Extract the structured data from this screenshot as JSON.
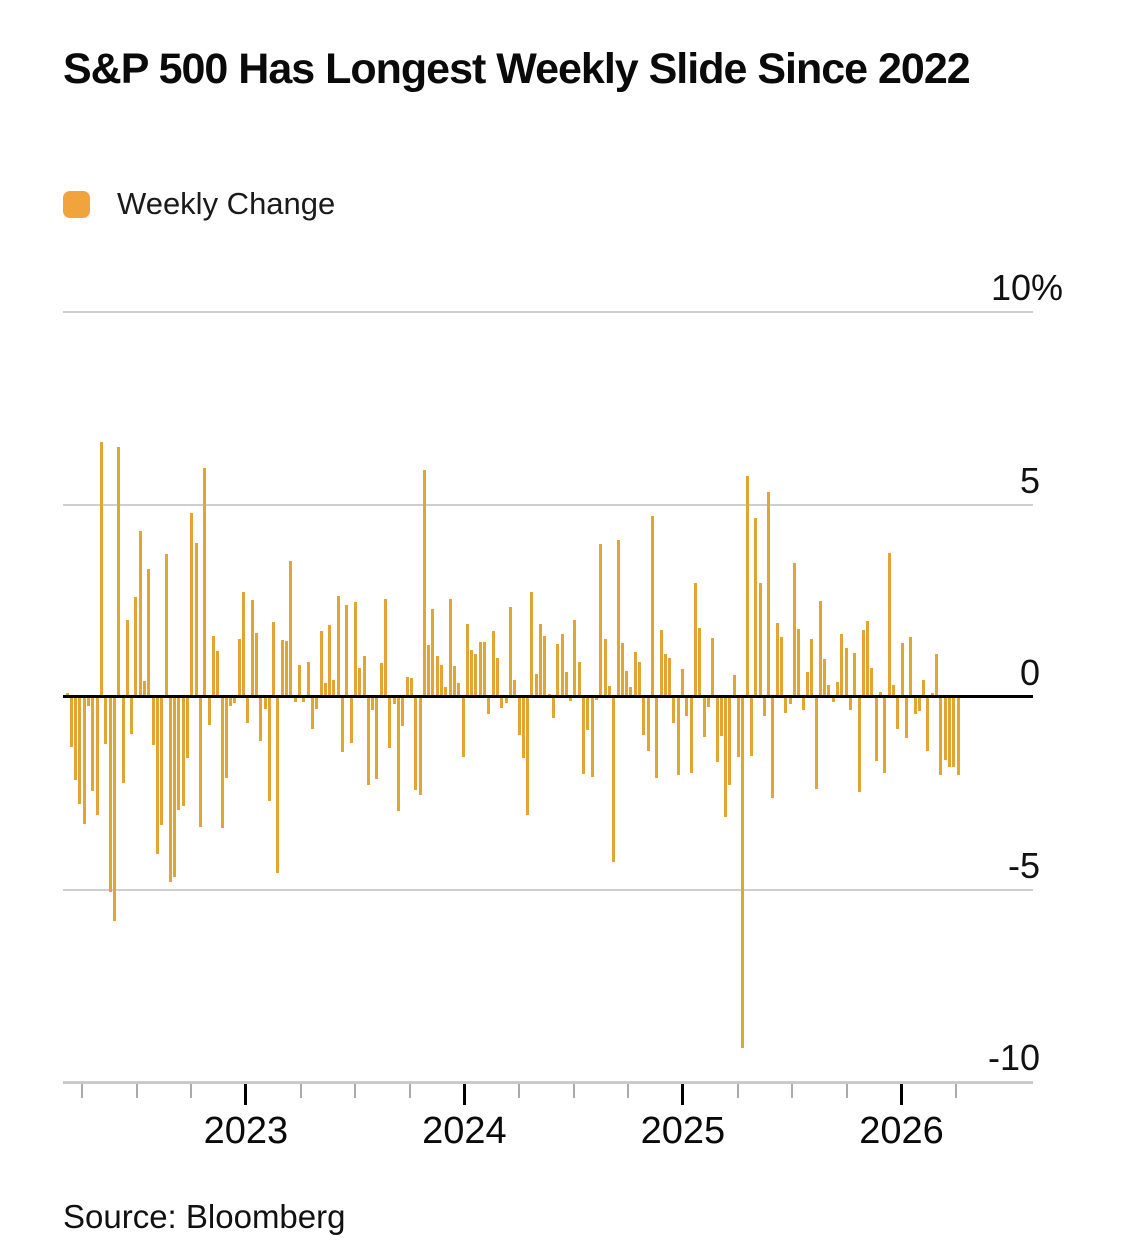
{
  "title": "S&P 500 Has Longest Weekly Slide Since 2022",
  "legend": {
    "label": "Weekly Change",
    "swatch_color": "#F2A33C"
  },
  "source": "Source: Bloomberg",
  "colors": {
    "bar": "#E2A433",
    "grid": "#CFCFCF",
    "zero_line": "#000000",
    "axis_line": "#C9C9C9",
    "text": "#0A0A0A"
  },
  "y_axis": {
    "unit": "%",
    "ticks": [
      {
        "value": 10,
        "label": "10%"
      },
      {
        "value": 5,
        "label": "5"
      },
      {
        "value": 0,
        "label": "0"
      },
      {
        "value": -5,
        "label": "-5"
      },
      {
        "value": -10,
        "label": "-10"
      }
    ]
  },
  "x_axis": {
    "year_labels": [
      "2023",
      "2024",
      "2025",
      "2026"
    ]
  },
  "chart_data": {
    "type": "bar",
    "title": "S&P 500 Has Longest Weekly Slide Since 2022",
    "series_name": "Weekly Change",
    "unit": "percent",
    "frequency": "weekly",
    "start_week": "2022-04-01",
    "end_week": "2026-03-20",
    "xlabel": "",
    "ylabel": "Weekly change (%)",
    "ylim": [
      -10.5,
      10
    ],
    "grid": true,
    "legend_position": "top-left",
    "values": [
      0.06,
      -1.27,
      -2.13,
      -2.75,
      -3.27,
      -0.21,
      -2.41,
      -3.05,
      6.58,
      -1.2,
      -5.05,
      -5.79,
      6.45,
      -2.21,
      1.94,
      -0.93,
      2.55,
      4.26,
      0.36,
      3.26,
      -1.21,
      -4.04,
      -3.29,
      3.65,
      -4.77,
      -4.65,
      -2.91,
      -2.8,
      -1.55,
      4.74,
      3.95,
      -3.35,
      5.9,
      -0.69,
      1.53,
      1.13,
      -3.37,
      -2.08,
      -0.2,
      -0.14,
      1.45,
      2.67,
      -0.66,
      2.47,
      1.62,
      -1.11,
      -0.28,
      -2.67,
      1.9,
      -4.55,
      1.43,
      1.39,
      3.48,
      -0.1,
      0.79,
      -0.1,
      0.87,
      -0.8,
      -0.29,
      1.65,
      0.32,
      1.83,
      0.39,
      2.58,
      -1.39,
      2.35,
      -1.16,
      2.42,
      0.69,
      1.01,
      -2.27,
      -0.31,
      -2.11,
      0.82,
      2.5,
      -1.29,
      -0.16,
      -2.93,
      -0.74,
      0.48,
      0.45,
      -2.39,
      -2.53,
      5.85,
      1.31,
      2.24,
      1.0,
      0.77,
      0.21,
      2.49,
      0.75,
      0.32,
      -1.52,
      1.84,
      1.17,
      1.06,
      1.38,
      1.37,
      -0.42,
      1.66,
      0.95,
      -0.26,
      -0.13,
      2.29,
      0.39,
      -0.95,
      -1.56,
      -3.05,
      2.67,
      0.55,
      1.85,
      1.54,
      0.03,
      -0.51,
      1.32,
      1.58,
      0.61,
      -0.08,
      1.95,
      0.87,
      -1.97,
      -0.83,
      -2.06,
      -0.04,
      3.93,
      1.45,
      0.24,
      -4.25,
      4.02,
      1.36,
      0.62,
      0.22,
      1.11,
      0.85,
      -0.96,
      -1.37,
      4.66,
      -2.08,
      1.68,
      1.06,
      0.96,
      -0.64,
      -1.99,
      0.67,
      -0.48,
      -1.94,
      2.91,
      1.74,
      -1.0,
      -0.24,
      1.47,
      -1.66,
      -0.98,
      -3.1,
      -2.27,
      0.51,
      -1.53,
      -9.08,
      5.7,
      -1.5,
      4.59,
      2.92,
      -0.47,
      5.27,
      -2.61,
      1.88,
      1.5,
      -0.39,
      -0.15,
      3.44,
      1.72,
      -0.31,
      0.59,
      1.46,
      -2.36,
      2.43,
      0.94,
      0.27,
      -0.1,
      0.33,
      1.59,
      1.22,
      -0.31,
      1.09,
      -2.43,
      1.7,
      1.92,
      0.71,
      -1.63,
      0.08,
      -1.95,
      3.7,
      0.25,
      -0.8,
      1.35,
      -1.03,
      1.5,
      -0.42,
      -0.35,
      0.4,
      -1.37,
      0.05,
      1.06,
      -2.0,
      -1.6,
      -1.8,
      -1.8,
      -2.0
    ]
  }
}
